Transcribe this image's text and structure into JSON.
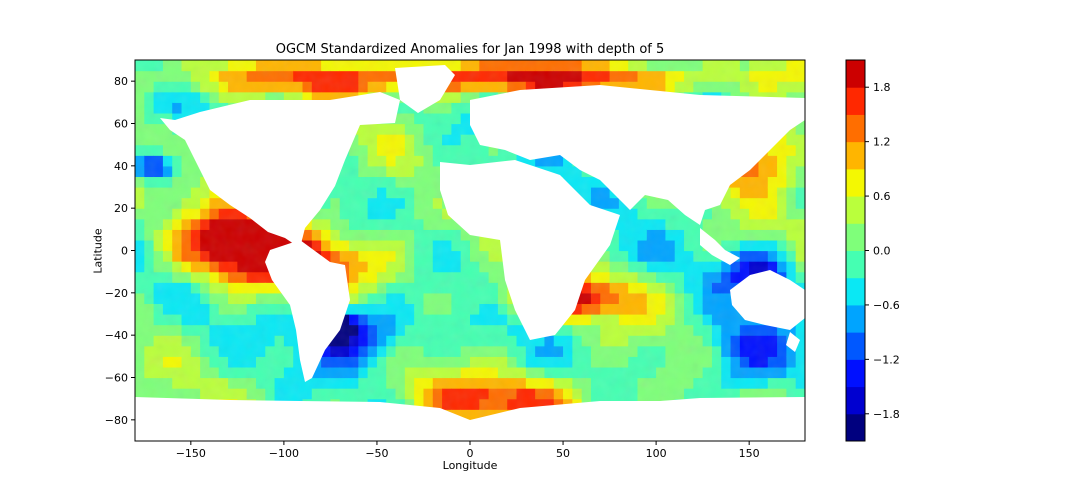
{
  "chart_data": {
    "type": "heatmap",
    "title": "OGCM Standardized Anomalies for Jan 1998 with depth of 5",
    "xlabel": "Longitude",
    "ylabel": "Latitude",
    "xlim": [
      -180,
      180
    ],
    "ylim": [
      -90,
      90
    ],
    "xticks": [
      -150,
      -100,
      -50,
      0,
      50,
      100,
      150
    ],
    "yticks": [
      -80,
      -60,
      -40,
      -20,
      0,
      20,
      40,
      60,
      80
    ],
    "colorbar": {
      "range": [
        -2.1,
        2.1
      ],
      "levels": [
        -2.1,
        -1.8,
        -1.5,
        -1.2,
        -0.9,
        -0.6,
        -0.3,
        0.0,
        0.3,
        0.6,
        0.9,
        1.2,
        1.5,
        1.8,
        2.1
      ],
      "ticks": [
        -1.8,
        -1.2,
        -0.6,
        0.0,
        0.6,
        1.2,
        1.8
      ],
      "tick_labels": [
        "−1.8",
        "−1.2",
        "−0.6",
        "0.0",
        "0.6",
        "1.2",
        "1.8"
      ],
      "colors": [
        "#00007f",
        "#0000d0",
        "#0010ff",
        "#0058ff",
        "#00a4ff",
        "#0ae8f4",
        "#45ffb2",
        "#7fff7a",
        "#baff3c",
        "#f4f802",
        "#ffb500",
        "#ff6e00",
        "#ff2800",
        "#cc0000",
        "#8b0000"
      ]
    },
    "anomaly_regions": [
      {
        "lon": [
          -160,
          -90
        ],
        "lat": [
          -10,
          20
        ],
        "value": 1.9
      },
      {
        "lon": [
          -150,
          -30
        ],
        "lat": [
          -20,
          10
        ],
        "value": 1.6
      },
      {
        "lon": [
          15,
          90
        ],
        "lat": [
          -30,
          -15
        ],
        "value": 2.0
      },
      {
        "lon": [
          -90,
          -30
        ],
        "lat": [
          -55,
          -25
        ],
        "value": -1.6
      },
      {
        "lon": [
          -80,
          -65
        ],
        "lat": [
          -40,
          -30
        ],
        "value": -2.0
      },
      {
        "lon": [
          120,
          175
        ],
        "lat": [
          -70,
          -30
        ],
        "value": -1.2
      },
      {
        "lon": [
          135,
          175
        ],
        "lat": [
          -20,
          0
        ],
        "value": -1.4
      },
      {
        "lon": [
          20,
          90
        ],
        "lat": [
          -5,
          5
        ],
        "value": -0.6
      },
      {
        "lon": [
          120,
          180
        ],
        "lat": [
          30,
          65
        ],
        "value": 1.8
      },
      {
        "lon": [
          -180,
          180
        ],
        "lat": [
          75,
          88
        ],
        "value": 1.8
      },
      {
        "lon": [
          -180,
          -160
        ],
        "lat": [
          35,
          45
        ],
        "value": -1.7
      },
      {
        "lon": [
          -40,
          80
        ],
        "lat": [
          -80,
          -60
        ],
        "value": 1.5
      },
      {
        "lon": [
          -20,
          20
        ],
        "lat": [
          20,
          40
        ],
        "value": -1.0
      }
    ]
  }
}
